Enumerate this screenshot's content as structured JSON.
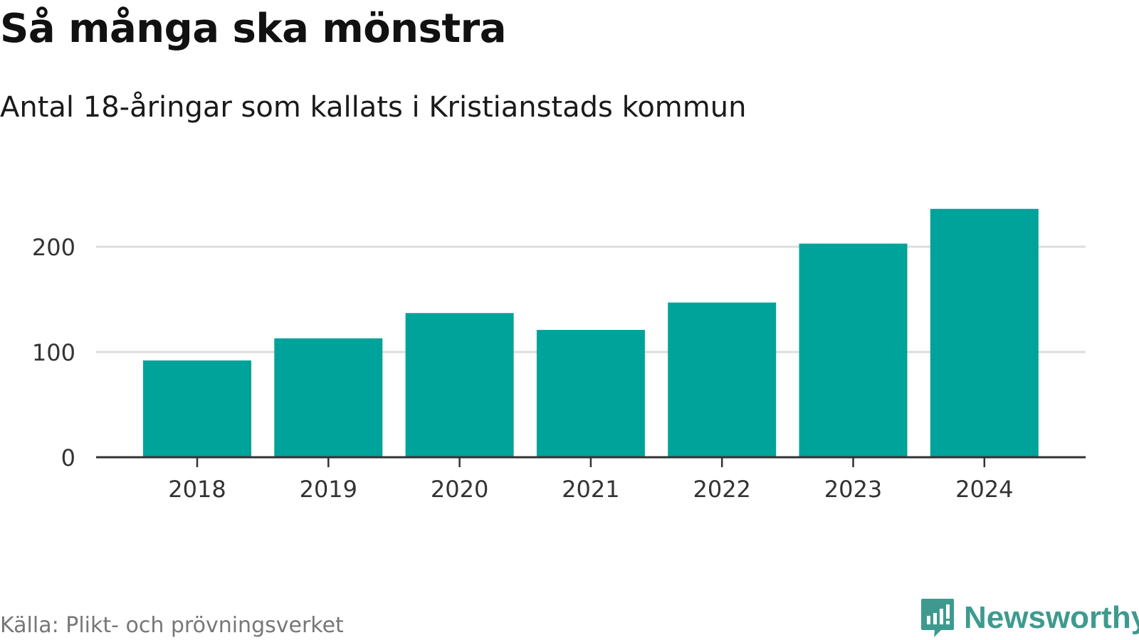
{
  "header": {
    "title": "Så många ska mönstra",
    "subtitle": "Antal 18-åringar som kallats i Kristianstads kommun"
  },
  "footer": {
    "source": "Källa: Plikt- och prövningsverket",
    "brand": "Newsworthy",
    "brand_icon": "newsworthy-logo-icon",
    "brand_color": "#3e9a8f"
  },
  "colors": {
    "bar": "#00a39a",
    "grid": "#dddddd",
    "axis": "#333333"
  },
  "chart_data": {
    "type": "bar",
    "categories": [
      "2018",
      "2019",
      "2020",
      "2021",
      "2022",
      "2023",
      "2024"
    ],
    "values": [
      92,
      113,
      137,
      121,
      147,
      203,
      236
    ],
    "ylim": [
      0,
      250
    ],
    "yticks": [
      0,
      100,
      200
    ],
    "grid": true,
    "xlabel": "",
    "ylabel": ""
  }
}
